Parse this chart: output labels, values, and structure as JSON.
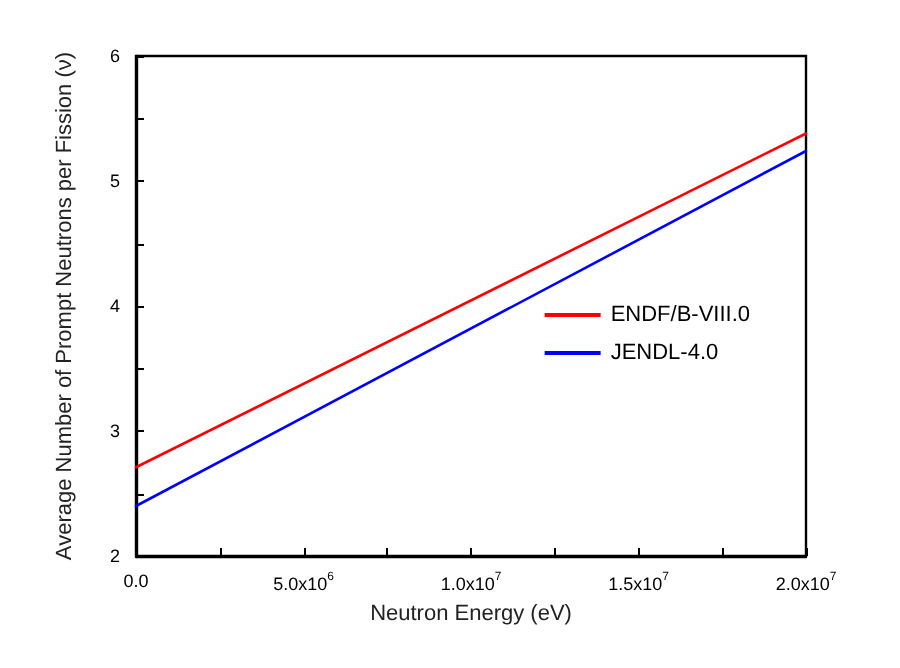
{
  "chart_data": {
    "type": "line",
    "xlabel": "Neutron Energy (eV)",
    "ylabel": "Average Number of Prompt Neutrons per Fission (ν)",
    "x": [
      0,
      20000000
    ],
    "series": [
      {
        "name": "ENDF/B-VIII.0",
        "color": "#ff0000",
        "values": [
          2.71,
          5.38
        ]
      },
      {
        "name": "JENDL-4.0",
        "color": "#0000ff",
        "values": [
          2.4,
          5.24
        ]
      }
    ],
    "xlim": [
      0,
      20000000
    ],
    "xticks": [
      {
        "value": 0,
        "label": "0.0"
      },
      {
        "value": 2500000,
        "label": null
      },
      {
        "value": 5000000,
        "label": "5.0x10$^{6}$"
      },
      {
        "value": 7500000,
        "label": null
      },
      {
        "value": 10000000,
        "label": "1.0x10$^{7}$"
      },
      {
        "value": 12500000,
        "label": null
      },
      {
        "value": 15000000,
        "label": "1.5x10$^{7}$"
      },
      {
        "value": 17500000,
        "label": null
      },
      {
        "value": 20000000,
        "label": "2.0x10$^{7}$"
      }
    ],
    "ylim": [
      2,
      6
    ],
    "yticks": [
      2,
      {
        "value": 2.5,
        "label": null
      },
      3,
      {
        "value": 3.5,
        "label": null
      },
      4,
      {
        "value": 4.5,
        "label": null
      },
      5,
      {
        "value": 5.5,
        "label": null
      },
      6
    ],
    "grid": false,
    "legend": "right",
    "marker": "none",
    "line_style": "solid"
  }
}
